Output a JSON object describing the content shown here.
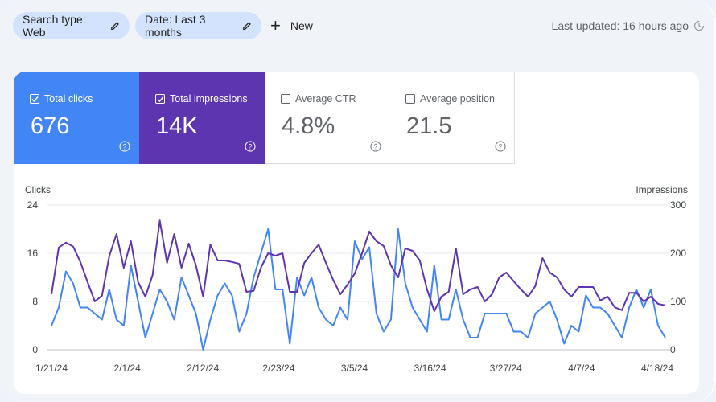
{
  "filters": {
    "search_type": "Search type: Web",
    "date": "Date: Last 3 months",
    "new_label": "New"
  },
  "last_updated": "Last updated: 16 hours ago",
  "metrics": [
    {
      "label": "Total clicks",
      "value": "676",
      "checked": true,
      "color": "#4285f4"
    },
    {
      "label": "Total impressions",
      "value": "14K",
      "checked": true,
      "color": "#5e35b1"
    },
    {
      "label": "Average CTR",
      "value": "4.8%",
      "checked": false
    },
    {
      "label": "Average position",
      "value": "21.5",
      "checked": false
    }
  ],
  "chart_data": {
    "type": "line",
    "x_tick_labels": [
      "1/21/24",
      "2/1/24",
      "2/12/24",
      "2/23/24",
      "3/5/24",
      "3/16/24",
      "3/27/24",
      "4/7/24",
      "4/18/24"
    ],
    "y_left": {
      "label": "Clicks",
      "ticks": [
        0,
        8,
        16,
        24
      ],
      "ylim": [
        0,
        24
      ]
    },
    "y_right": {
      "label": "Impressions",
      "ticks": [
        0,
        100,
        200,
        300
      ],
      "ylim": [
        0,
        300
      ]
    },
    "grid": true,
    "series": [
      {
        "axis": "left",
        "color": "#4285f4",
        "values": [
          4,
          7,
          13,
          11,
          7,
          7,
          6,
          5,
          10,
          5,
          4,
          14,
          8,
          2,
          6,
          10,
          8,
          5,
          12,
          9,
          6,
          0,
          5,
          9,
          11,
          9,
          3,
          6,
          12,
          16,
          20,
          10,
          10,
          1,
          12,
          9,
          12,
          7,
          5,
          4,
          7,
          5,
          18,
          15,
          17,
          6,
          3,
          5,
          20,
          11,
          7,
          5,
          3,
          14,
          5,
          5,
          10,
          5,
          2,
          2,
          6,
          6,
          6,
          6,
          3,
          3,
          2,
          6,
          7,
          8,
          5,
          1,
          4,
          3,
          9,
          7,
          7,
          6,
          4,
          2,
          7,
          10,
          7,
          10,
          4,
          2
        ]
      },
      {
        "axis": "right",
        "color": "#5e35b1",
        "values": [
          115,
          212,
          222,
          214,
          182,
          140,
          100,
          112,
          194,
          240,
          170,
          225,
          140,
          110,
          155,
          268,
          180,
          240,
          170,
          220,
          175,
          110,
          218,
          185,
          185,
          182,
          178,
          120,
          122,
          170,
          200,
          195,
          200,
          120,
          120,
          180,
          200,
          218,
          180,
          145,
          115,
          135,
          158,
          200,
          245,
          225,
          215,
          175,
          150,
          210,
          205,
          185,
          125,
          80,
          110,
          120,
          210,
          115,
          125,
          130,
          100,
          115,
          150,
          160,
          142,
          125,
          110,
          132,
          190,
          160,
          150,
          125,
          110,
          130,
          130,
          130,
          102,
          110,
          88,
          82,
          118,
          118,
          100,
          110,
          95,
          92
        ]
      }
    ]
  }
}
